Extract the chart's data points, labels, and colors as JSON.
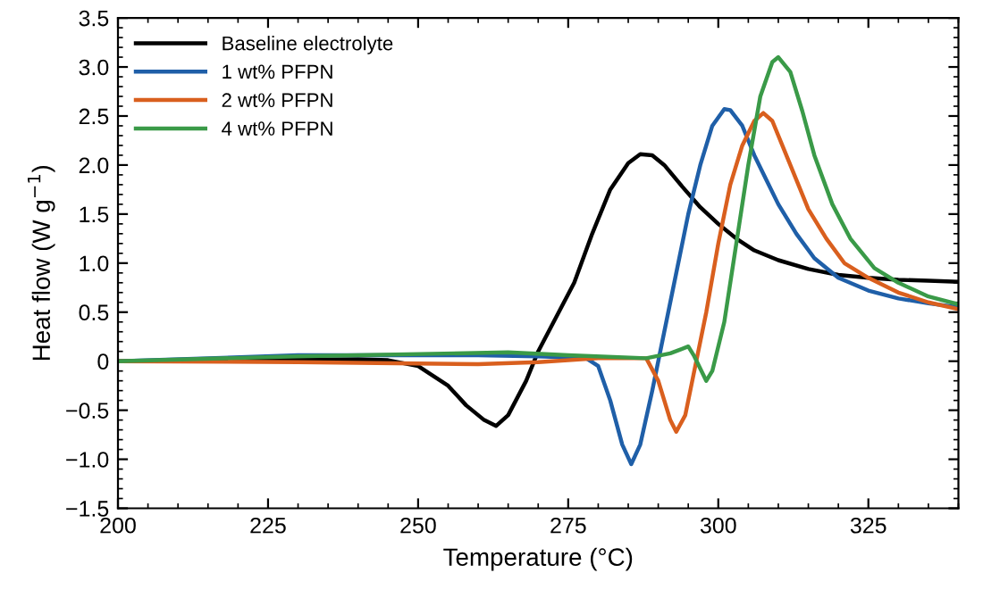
{
  "chart_data": {
    "type": "line",
    "xlabel": "Temperature (°C)",
    "ylabel": "Heat flow (W g$^{−1}$)",
    "xlim": [
      200,
      340
    ],
    "ylim": [
      -1.5,
      3.5
    ],
    "xticks": [
      200,
      225,
      250,
      275,
      300,
      325
    ],
    "yticks": [
      {
        "value": -1.5,
        "label": "−1.5"
      },
      {
        "value": -1.0,
        "label": "−1.0"
      },
      {
        "value": -0.5,
        "label": "−0.5"
      },
      {
        "value": 0,
        "label": "0"
      },
      {
        "value": 0.5,
        "label": "0.5"
      },
      {
        "value": 1.0,
        "label": "1.0"
      },
      {
        "value": 1.5,
        "label": "1.5"
      },
      {
        "value": 2.0,
        "label": "2.0"
      },
      {
        "value": 2.5,
        "label": "2.5"
      },
      {
        "value": 3.0,
        "label": "3.0"
      },
      {
        "value": 3.5,
        "label": "3.5"
      }
    ],
    "grid": false,
    "legend": "top left",
    "line_style": "solid",
    "marker": "none",
    "series": [
      {
        "name": "Baseline electrolyte",
        "color": "#000000",
        "x": [
          200,
          220,
          240,
          245,
          250,
          255,
          258,
          261,
          263,
          265,
          268,
          270,
          273,
          276,
          279,
          282,
          285,
          287,
          289,
          291,
          294,
          297,
          300,
          303,
          306,
          310,
          315,
          320,
          325,
          330,
          335,
          340
        ],
        "values": [
          0,
          0.01,
          0.02,
          0.01,
          -0.05,
          -0.25,
          -0.45,
          -0.6,
          -0.66,
          -0.55,
          -0.2,
          0.1,
          0.45,
          0.8,
          1.3,
          1.75,
          2.02,
          2.11,
          2.1,
          2.0,
          1.78,
          1.57,
          1.4,
          1.25,
          1.13,
          1.03,
          0.94,
          0.88,
          0.85,
          0.83,
          0.82,
          0.81
        ]
      },
      {
        "name": "1 wt% PFPN",
        "color": "#1f5fa8",
        "x": [
          200,
          230,
          260,
          270,
          278,
          280,
          282,
          284,
          285.5,
          287,
          289,
          291,
          293,
          295,
          297,
          299,
          301,
          302,
          304,
          306,
          308,
          310,
          313,
          316,
          320,
          325,
          330,
          335,
          340
        ],
        "values": [
          0,
          0.06,
          0.06,
          0.05,
          0.03,
          -0.05,
          -0.4,
          -0.85,
          -1.05,
          -0.85,
          -0.3,
          0.3,
          0.9,
          1.5,
          2.0,
          2.4,
          2.57,
          2.56,
          2.4,
          2.1,
          1.85,
          1.6,
          1.3,
          1.05,
          0.85,
          0.72,
          0.64,
          0.59,
          0.55
        ]
      },
      {
        "name": "2 wt% PFPN",
        "color": "#d95f1e",
        "x": [
          200,
          230,
          260,
          270,
          280,
          288,
          290,
          292,
          293,
          294.5,
          296,
          298,
          300,
          302,
          304,
          306,
          307.5,
          309,
          311,
          313,
          315,
          318,
          321,
          325,
          330,
          335,
          340
        ],
        "values": [
          0,
          -0.01,
          -0.03,
          -0.01,
          0.03,
          0.03,
          -0.2,
          -0.6,
          -0.72,
          -0.55,
          -0.1,
          0.5,
          1.2,
          1.8,
          2.2,
          2.45,
          2.53,
          2.45,
          2.15,
          1.85,
          1.55,
          1.25,
          1.0,
          0.85,
          0.7,
          0.6,
          0.53
        ]
      },
      {
        "name": "4 wt% PFPN",
        "color": "#3a9a48",
        "x": [
          200,
          230,
          265,
          275,
          288,
          292,
          295,
          296,
          298,
          299,
          301,
          303,
          305,
          307,
          309,
          310,
          312,
          314,
          316,
          319,
          322,
          326,
          330,
          335,
          340
        ],
        "values": [
          0,
          0.05,
          0.09,
          0.06,
          0.03,
          0.08,
          0.15,
          0.05,
          -0.2,
          -0.1,
          0.4,
          1.2,
          2.0,
          2.7,
          3.05,
          3.1,
          2.95,
          2.55,
          2.1,
          1.6,
          1.25,
          0.95,
          0.8,
          0.66,
          0.58
        ]
      }
    ]
  }
}
